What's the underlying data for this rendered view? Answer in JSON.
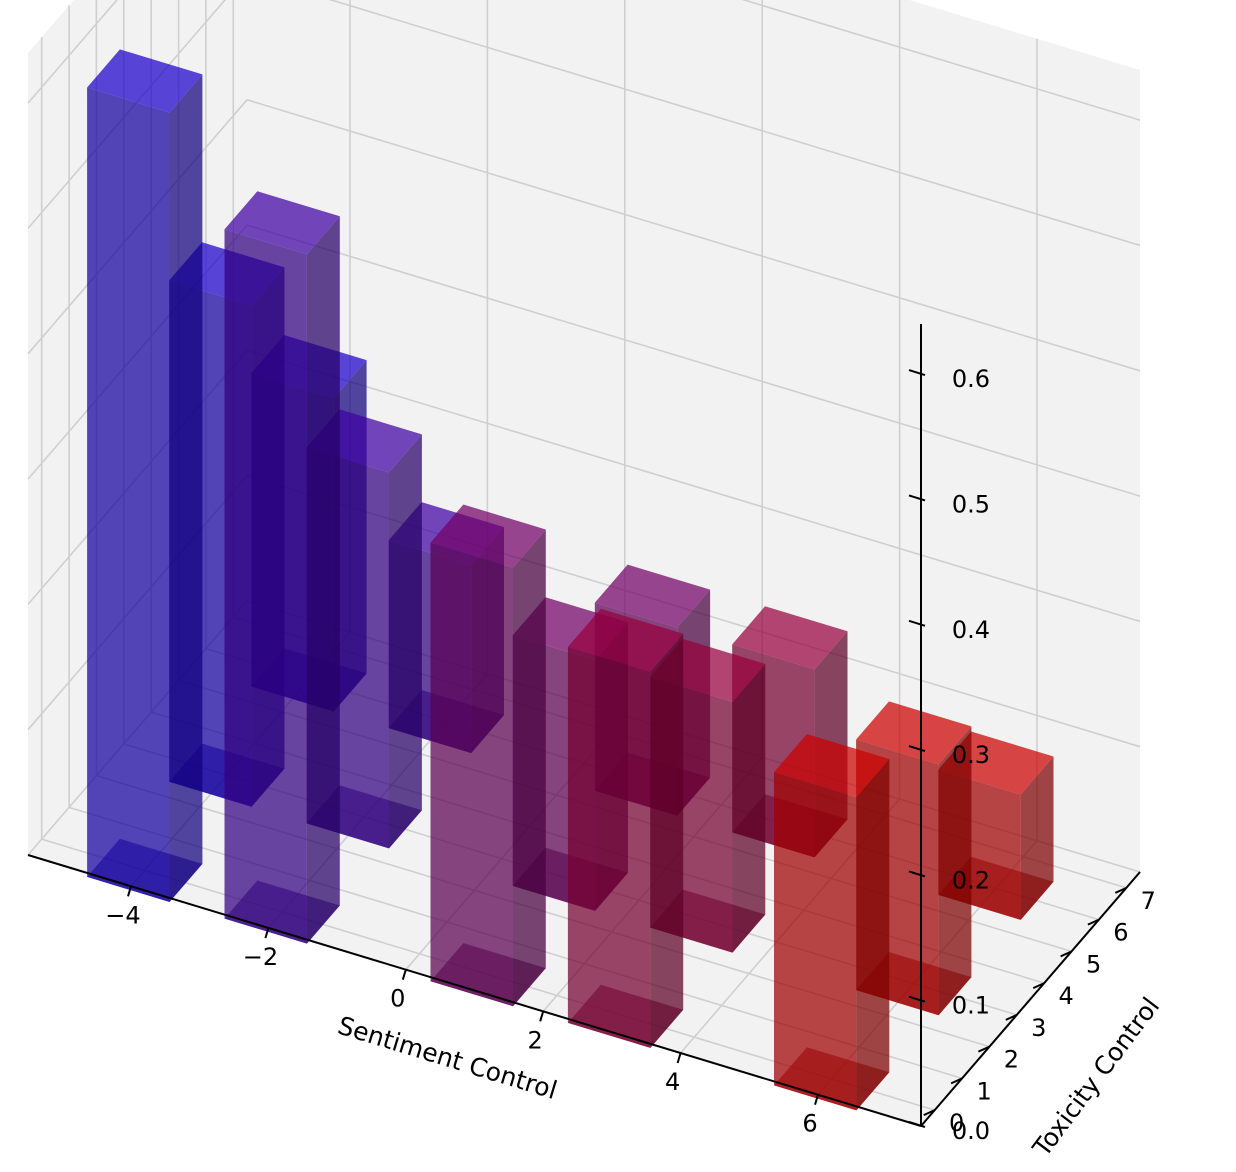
{
  "chart_data": {
    "type": "bar3d",
    "title": "",
    "xlabel": "Sentiment Control",
    "ylabel": "Toxicity Control",
    "zlabel": "",
    "x_ticks": [
      "−4",
      "−2",
      "0",
      "2",
      "4",
      "6"
    ],
    "y_ticks": [
      "0",
      "1",
      "2",
      "3",
      "4",
      "5",
      "6",
      "7"
    ],
    "z_ticks": [
      "0.0",
      "0.1",
      "0.2",
      "0.3",
      "0.4",
      "0.5",
      "0.6"
    ],
    "xlim": [
      -5.5,
      7.5
    ],
    "ylim": [
      -0.5,
      7.5
    ],
    "zlim": [
      0,
      0.64
    ],
    "grid": true,
    "color_low": "#1a00cc",
    "color_high": "#cc0000",
    "bars": [
      {
        "x": -4,
        "y": 0,
        "z": 0.63
      },
      {
        "x": -4,
        "y": 3,
        "z": 0.4
      },
      {
        "x": -4,
        "y": 6,
        "z": 0.25
      },
      {
        "x": -2,
        "y": 0,
        "z": 0.55
      },
      {
        "x": -2,
        "y": 3,
        "z": 0.3
      },
      {
        "x": -2,
        "y": 6,
        "z": 0.15
      },
      {
        "x": 1,
        "y": 0,
        "z": 0.35
      },
      {
        "x": 1,
        "y": 3,
        "z": 0.2
      },
      {
        "x": 1,
        "y": 6,
        "z": 0.15
      },
      {
        "x": 3,
        "y": 0,
        "z": 0.3
      },
      {
        "x": 3,
        "y": 3,
        "z": 0.2
      },
      {
        "x": 3,
        "y": 6,
        "z": 0.15
      },
      {
        "x": 6,
        "y": 0,
        "z": 0.25
      },
      {
        "x": 6,
        "y": 3,
        "z": 0.2
      },
      {
        "x": 6,
        "y": 6,
        "z": 0.1
      }
    ]
  }
}
